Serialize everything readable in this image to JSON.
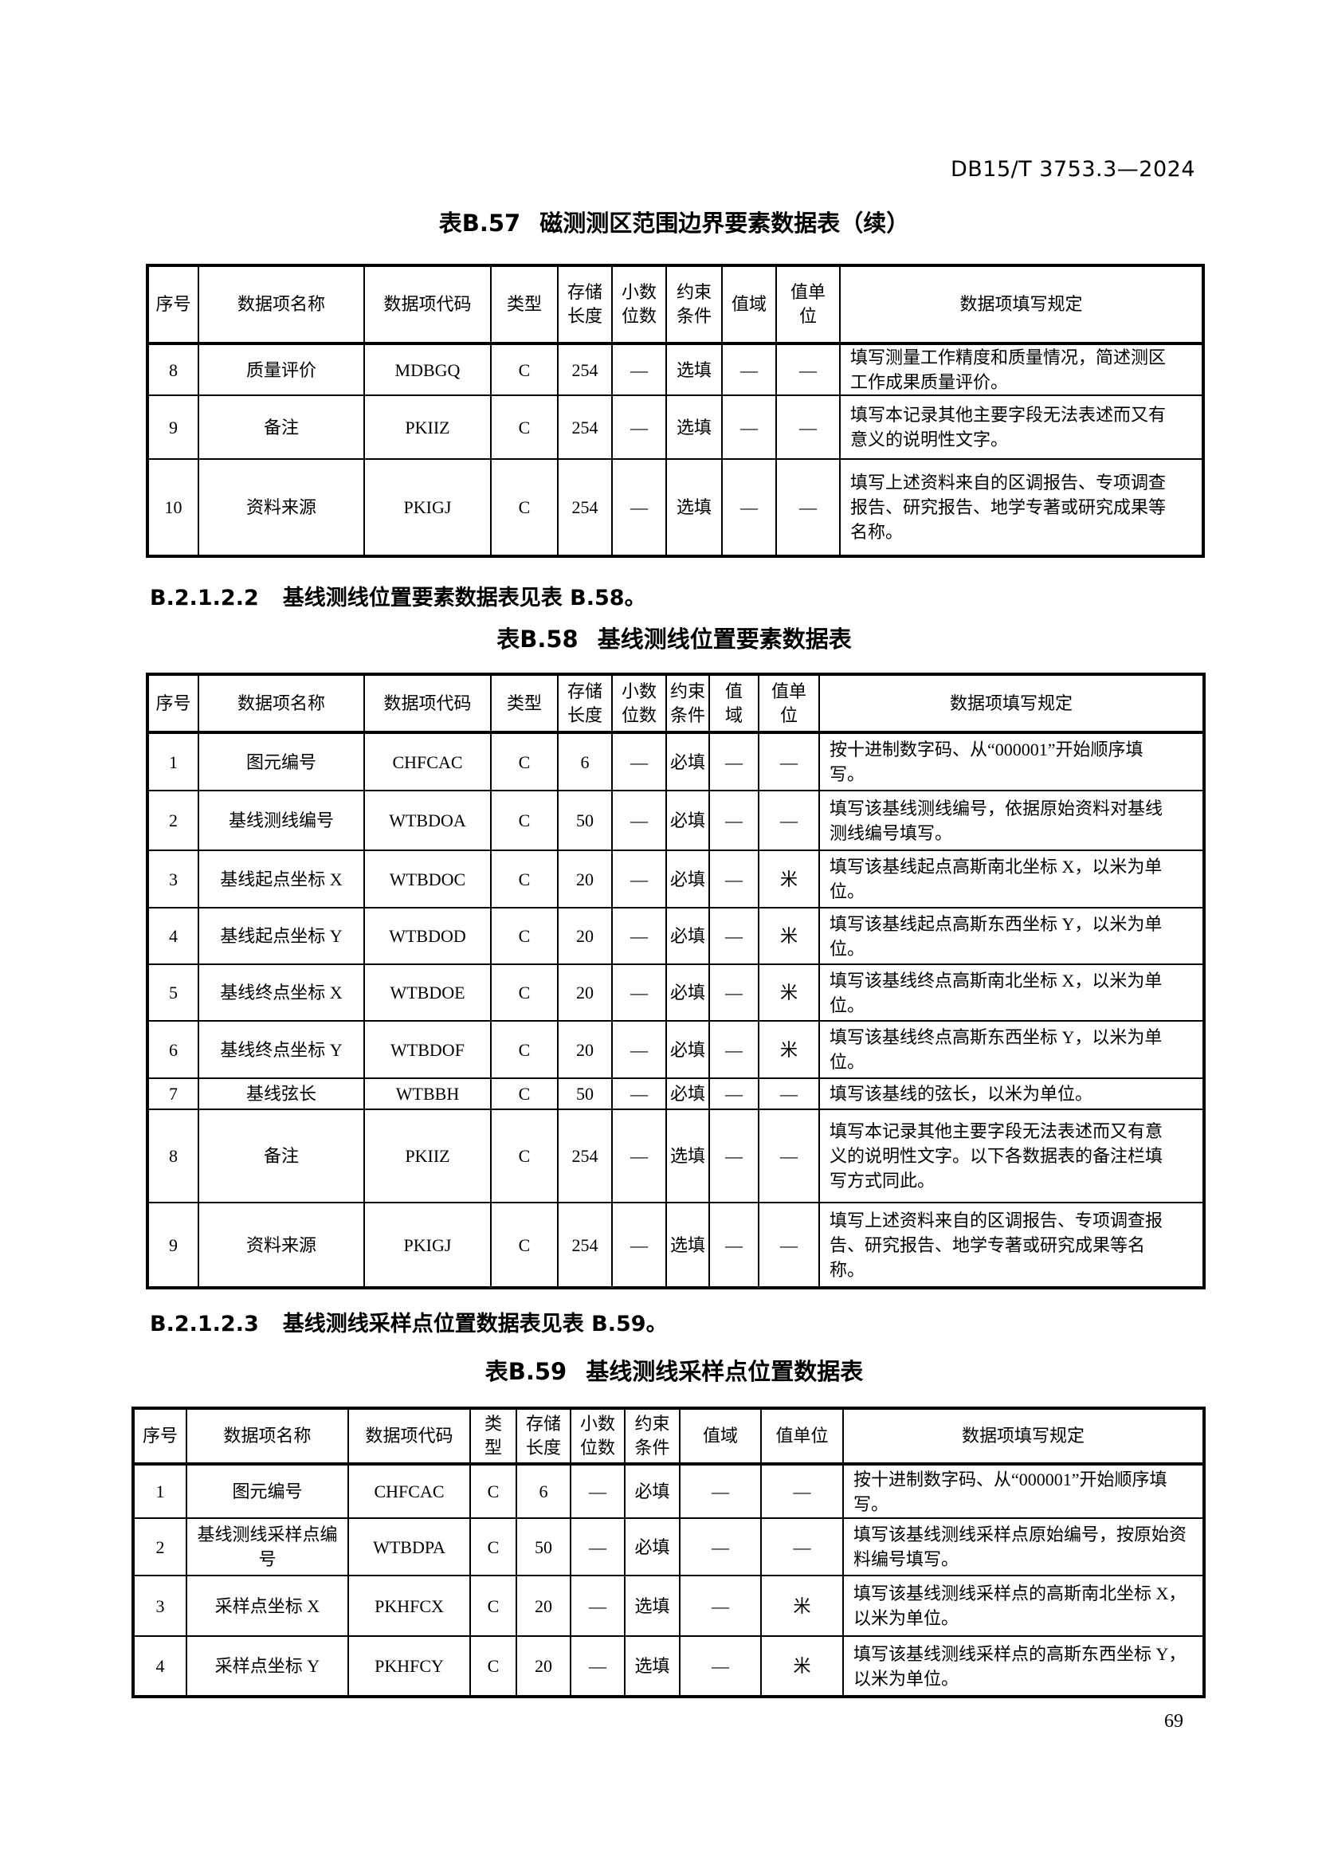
{
  "colors": {
    "text": "#000000",
    "background": "#ffffff",
    "table_border": "#000000"
  },
  "header": {
    "doc_code": "DB15/T 3753.3—2024"
  },
  "footer": {
    "page_number": "69"
  },
  "table57": {
    "title": {
      "label": "表B.57",
      "text": "磁测测区范围边界要素数据表（续）"
    },
    "columns": [
      "序号",
      "数据项名称",
      "数据项代码",
      "类型",
      "存储\n长度",
      "小数\n位数",
      "约束\n条件",
      "值域",
      "值单\n位",
      "数据项填写规定"
    ],
    "rows": [
      [
        "8",
        "质量评价",
        "MDBGQ",
        "C",
        "254",
        "—",
        "选填",
        "—",
        "—",
        "填写测量工作精度和质量情况，简述测区工作成果质量评价。"
      ],
      [
        "9",
        "备注",
        "PKIIZ",
        "C",
        "254",
        "—",
        "选填",
        "—",
        "—",
        "填写本记录其他主要字段无法表述而又有意义的说明性文字。"
      ],
      [
        "10",
        "资料来源",
        "PKIGJ",
        "C",
        "254",
        "—",
        "选填",
        "—",
        "—",
        "填写上述资料来自的区调报告、专项调查报告、研究报告、地学专著或研究成果等名称。"
      ]
    ]
  },
  "clause_b2122": {
    "number": "B.2.1.2.2",
    "text": "基线测线位置要素数据表见表 B.58。"
  },
  "table58": {
    "title": {
      "label": "表B.58",
      "text": "基线测线位置要素数据表"
    },
    "columns": [
      "序号",
      "数据项名称",
      "数据项代码",
      "类型",
      "存储\n长度",
      "小数\n位数",
      "约束\n条件",
      "值\n域",
      "值单\n位",
      "数据项填写规定"
    ],
    "rows": [
      [
        "1",
        "图元编号",
        "CHFCAC",
        "C",
        "6",
        "—",
        "必填",
        "—",
        "—",
        "按十进制数字码、从“000001”开始顺序填写。"
      ],
      [
        "2",
        "基线测线编号",
        "WTBDOA",
        "C",
        "50",
        "—",
        "必填",
        "—",
        "—",
        "填写该基线测线编号，依据原始资料对基线测线编号填写。"
      ],
      [
        "3",
        "基线起点坐标 X",
        "WTBDOC",
        "C",
        "20",
        "—",
        "必填",
        "—",
        "米",
        "填写该基线起点高斯南北坐标 X，以米为单位。"
      ],
      [
        "4",
        "基线起点坐标 Y",
        "WTBDOD",
        "C",
        "20",
        "—",
        "必填",
        "—",
        "米",
        "填写该基线起点高斯东西坐标 Y，以米为单位。"
      ],
      [
        "5",
        "基线终点坐标 X",
        "WTBDOE",
        "C",
        "20",
        "—",
        "必填",
        "—",
        "米",
        "填写该基线终点高斯南北坐标 X，以米为单位。"
      ],
      [
        "6",
        "基线终点坐标 Y",
        "WTBDOF",
        "C",
        "20",
        "—",
        "必填",
        "—",
        "米",
        "填写该基线终点高斯东西坐标 Y，以米为单位。"
      ],
      [
        "7",
        "基线弦长",
        "WTBBH",
        "C",
        "50",
        "—",
        "必填",
        "—",
        "—",
        "填写该基线的弦长，以米为单位。"
      ],
      [
        "8",
        "备注",
        "PKIIZ",
        "C",
        "254",
        "—",
        "选填",
        "—",
        "—",
        "填写本记录其他主要字段无法表述而又有意义的说明性文字。以下各数据表的备注栏填写方式同此。"
      ],
      [
        "9",
        "资料来源",
        "PKIGJ",
        "C",
        "254",
        "—",
        "选填",
        "—",
        "—",
        "填写上述资料来自的区调报告、专项调查报告、研究报告、地学专著或研究成果等名称。"
      ]
    ]
  },
  "clause_b2123": {
    "number": "B.2.1.2.3",
    "text": "基线测线采样点位置数据表见表 B.59。"
  },
  "table59": {
    "title": {
      "label": "表B.59",
      "text": "基线测线采样点位置数据表"
    },
    "columns": [
      "序号",
      "数据项名称",
      "数据项代码",
      "类\n型",
      "存储\n长度",
      "小数\n位数",
      "约束\n条件",
      "值域",
      "值单位",
      "数据项填写规定"
    ],
    "rows": [
      [
        "1",
        "图元编号",
        "CHFCAC",
        "C",
        "6",
        "—",
        "必填",
        "—",
        "—",
        "按十进制数字码、从“000001”开始顺序填写。"
      ],
      [
        "2",
        "基线测线采样点编号",
        "WTBDPA",
        "C",
        "50",
        "—",
        "必填",
        "—",
        "—",
        "填写该基线测线采样点原始编号，按原始资料编号填写。"
      ],
      [
        "3",
        "采样点坐标 X",
        "PKHFCX",
        "C",
        "20",
        "—",
        "选填",
        "—",
        "米",
        "填写该基线测线采样点的高斯南北坐标 X，以米为单位。"
      ],
      [
        "4",
        "采样点坐标 Y",
        "PKHFCY",
        "C",
        "20",
        "—",
        "选填",
        "—",
        "米",
        "填写该基线测线采样点的高斯东西坐标 Y，以米为单位。"
      ]
    ]
  }
}
